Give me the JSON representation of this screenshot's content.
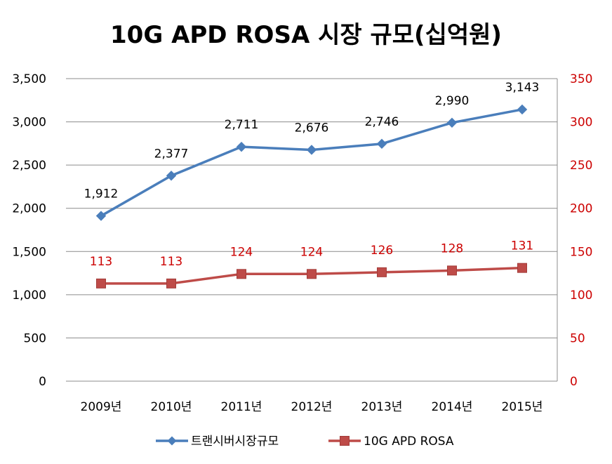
{
  "chart_data": {
    "type": "line",
    "title": "10G APD ROSA 시장 규모(십억원)",
    "categories": [
      "2009년",
      "2010년",
      "2011년",
      "2012년",
      "2013년",
      "2014년",
      "2015년"
    ],
    "series": [
      {
        "name": "트랜시버시장규모",
        "axis": "left",
        "color": "#4a7ebb",
        "marker": "diamond",
        "values": [
          1912,
          2377,
          2711,
          2676,
          2746,
          2990,
          3143
        ],
        "labels": [
          "1,912",
          "2,377",
          "2,711",
          "2,676",
          "2,746",
          "2,990",
          "3,143"
        ]
      },
      {
        "name": "10G APD ROSA",
        "axis": "right",
        "color": "#be4b48",
        "label_color": "#cc0000",
        "marker": "square",
        "values": [
          113,
          113,
          124,
          124,
          126,
          128,
          131
        ],
        "labels": [
          "113",
          "113",
          "124",
          "124",
          "126",
          "128",
          "131"
        ]
      }
    ],
    "y_left": {
      "lim": [
        0,
        3500
      ],
      "ticks": [
        0,
        500,
        1000,
        1500,
        2000,
        2500,
        3000,
        3500
      ],
      "tick_labels": [
        "0",
        "500",
        "1,000",
        "1,500",
        "2,000",
        "2,500",
        "3,000",
        "3,500"
      ]
    },
    "y_right": {
      "lim": [
        0,
        350
      ],
      "ticks": [
        0,
        50,
        100,
        150,
        200,
        250,
        300,
        350
      ],
      "tick_labels": [
        "0",
        "50",
        "100",
        "150",
        "200",
        "250",
        "300",
        "350"
      ],
      "color": "#cc0000"
    },
    "grid": true,
    "legend_position": "bottom"
  }
}
